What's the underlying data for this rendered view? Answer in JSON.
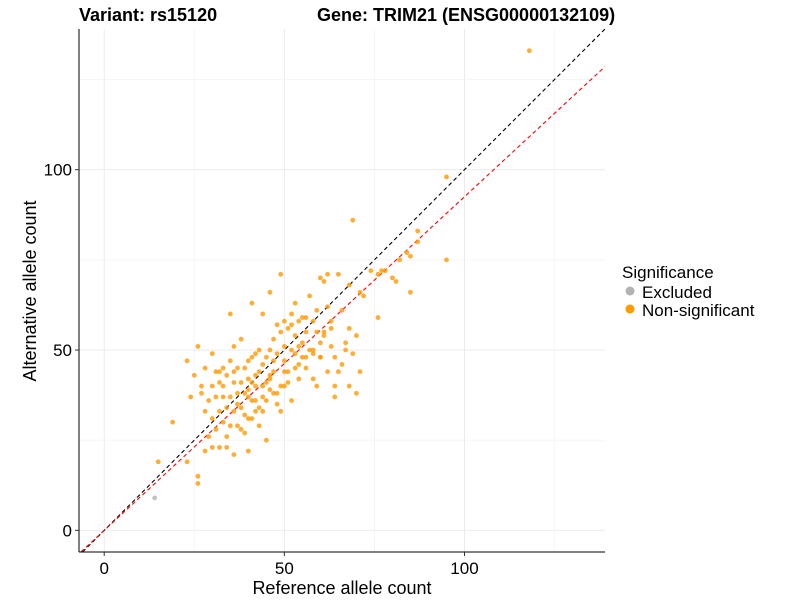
{
  "header": {
    "variant": "Variant: rs15120",
    "gene": "Gene: TRIM21 (ENSG00000132109)"
  },
  "legend": {
    "title": "Significance",
    "items": [
      {
        "label": "Excluded",
        "color": "#b3b3b3"
      },
      {
        "label": "Non-significant",
        "color": "#ff9900"
      }
    ]
  },
  "chart_data": {
    "type": "scatter",
    "xlabel": "Reference allele count",
    "ylabel": "Alternative allele count",
    "xlim": [
      -7,
      139
    ],
    "ylim": [
      -6,
      139
    ],
    "xticks": [
      0,
      50,
      100
    ],
    "yticks": [
      0,
      50,
      100
    ],
    "grid": true,
    "legend_position": "right",
    "reference_lines": [
      {
        "name": "identity",
        "slope": 1.0,
        "intercept": 0,
        "color": "#000000",
        "dash": true
      },
      {
        "name": "fit",
        "slope": 0.925,
        "intercept": 0,
        "color": "#ff0000",
        "dash": true
      }
    ],
    "series": [
      {
        "name": "Excluded",
        "color": "#b3b3b3",
        "points": [
          [
            14,
            9
          ]
        ]
      },
      {
        "name": "Non-significant",
        "color": "#ff9900",
        "points": [
          [
            118,
            133
          ],
          [
            95,
            98
          ],
          [
            95,
            75
          ],
          [
            87,
            83
          ],
          [
            87,
            80
          ],
          [
            85,
            76
          ],
          [
            85,
            66
          ],
          [
            84,
            77
          ],
          [
            82,
            75
          ],
          [
            81,
            69
          ],
          [
            80,
            70
          ],
          [
            78,
            72
          ],
          [
            77,
            72
          ],
          [
            76,
            59
          ],
          [
            76,
            71
          ],
          [
            74,
            72
          ],
          [
            72,
            65
          ],
          [
            71,
            66
          ],
          [
            69,
            86
          ],
          [
            70,
            54
          ],
          [
            70,
            38
          ],
          [
            69,
            49
          ],
          [
            68,
            40
          ],
          [
            68,
            56
          ],
          [
            68,
            68
          ],
          [
            67,
            52
          ],
          [
            66,
            61
          ],
          [
            65,
            71
          ],
          [
            65,
            44
          ],
          [
            64,
            48
          ],
          [
            64,
            37
          ],
          [
            63,
            56
          ],
          [
            63,
            51
          ],
          [
            62,
            62
          ],
          [
            62,
            71
          ],
          [
            61,
            69
          ],
          [
            61,
            55
          ],
          [
            60,
            70
          ],
          [
            60,
            48
          ],
          [
            59,
            61
          ],
          [
            59,
            55
          ],
          [
            58,
            58
          ],
          [
            58,
            49
          ],
          [
            57,
            65
          ],
          [
            56,
            59
          ],
          [
            56,
            55
          ],
          [
            55,
            59
          ],
          [
            55,
            52
          ],
          [
            55,
            48
          ],
          [
            54,
            58
          ],
          [
            54,
            51
          ],
          [
            54,
            46
          ],
          [
            53,
            54
          ],
          [
            53,
            49
          ],
          [
            52,
            57
          ],
          [
            52,
            50
          ],
          [
            52,
            60
          ],
          [
            51,
            56
          ],
          [
            51,
            41
          ],
          [
            50,
            58
          ],
          [
            50,
            51
          ],
          [
            50,
            47
          ],
          [
            49,
            55
          ],
          [
            49,
            71
          ],
          [
            49,
            40
          ],
          [
            48,
            57
          ],
          [
            48,
            49
          ],
          [
            48,
            38
          ],
          [
            47,
            53
          ],
          [
            47,
            44
          ],
          [
            46,
            50
          ],
          [
            46,
            43
          ],
          [
            46,
            66
          ],
          [
            45,
            48
          ],
          [
            45,
            41
          ],
          [
            45,
            25
          ],
          [
            44,
            60
          ],
          [
            44,
            46
          ],
          [
            44,
            37
          ],
          [
            43,
            50
          ],
          [
            43,
            44
          ],
          [
            43,
            34
          ],
          [
            42,
            49
          ],
          [
            42,
            43
          ],
          [
            42,
            33
          ],
          [
            41,
            48
          ],
          [
            41,
            41
          ],
          [
            41,
            36
          ],
          [
            41,
            63
          ],
          [
            40,
            47
          ],
          [
            40,
            39
          ],
          [
            40,
            31
          ],
          [
            39,
            45
          ],
          [
            39,
            38
          ],
          [
            39,
            27
          ],
          [
            38,
            41
          ],
          [
            38,
            34
          ],
          [
            38,
            53
          ],
          [
            37,
            45
          ],
          [
            37,
            38
          ],
          [
            37,
            29
          ],
          [
            36,
            41
          ],
          [
            36,
            33
          ],
          [
            36,
            21
          ],
          [
            35,
            47
          ],
          [
            35,
            37
          ],
          [
            35,
            29
          ],
          [
            35,
            60
          ],
          [
            34,
            43
          ],
          [
            34,
            34
          ],
          [
            34,
            26
          ],
          [
            33,
            45
          ],
          [
            33,
            37
          ],
          [
            33,
            30
          ],
          [
            32,
            41
          ],
          [
            32,
            33
          ],
          [
            32,
            23
          ],
          [
            31,
            44
          ],
          [
            31,
            37
          ],
          [
            31,
            28
          ],
          [
            30,
            40
          ],
          [
            30,
            31
          ],
          [
            30,
            49
          ],
          [
            29,
            36
          ],
          [
            29,
            26
          ],
          [
            28,
            33
          ],
          [
            28,
            22
          ],
          [
            27,
            38
          ],
          [
            27,
            40
          ],
          [
            26,
            51
          ],
          [
            26,
            15
          ],
          [
            26,
            13
          ],
          [
            25,
            43
          ],
          [
            24,
            37
          ],
          [
            23,
            47
          ],
          [
            23,
            19
          ],
          [
            19,
            30
          ],
          [
            15,
            19
          ],
          [
            28,
            45
          ],
          [
            32,
            44
          ],
          [
            36,
            44
          ],
          [
            40,
            42
          ],
          [
            42,
            36
          ],
          [
            44,
            33
          ],
          [
            46,
            42
          ],
          [
            48,
            35
          ],
          [
            50,
            44
          ],
          [
            52,
            36
          ],
          [
            56,
            45
          ],
          [
            58,
            42
          ],
          [
            60,
            48
          ],
          [
            62,
            44
          ],
          [
            64,
            40
          ],
          [
            66,
            46
          ],
          [
            38,
            28
          ],
          [
            40,
            22
          ],
          [
            43,
            29
          ],
          [
            46,
            39
          ],
          [
            50,
            40
          ],
          [
            53,
            63
          ],
          [
            57,
            50
          ],
          [
            59,
            40
          ],
          [
            61,
            54
          ],
          [
            63,
            58
          ],
          [
            67,
            50
          ],
          [
            71,
            44
          ],
          [
            34,
            23
          ],
          [
            37,
            35
          ],
          [
            39,
            32
          ],
          [
            41,
            31
          ],
          [
            47,
            47
          ],
          [
            49,
            33
          ],
          [
            51,
            44
          ],
          [
            54,
            42
          ],
          [
            58,
            50
          ],
          [
            30,
            23
          ],
          [
            33,
            40
          ],
          [
            36,
            51
          ],
          [
            45,
            36
          ],
          [
            42,
            40
          ],
          [
            40,
            37
          ],
          [
            44,
            40
          ],
          [
            47,
            38
          ],
          [
            53,
            45
          ],
          [
            56,
            48
          ],
          [
            60,
            52
          ]
        ]
      }
    ]
  }
}
